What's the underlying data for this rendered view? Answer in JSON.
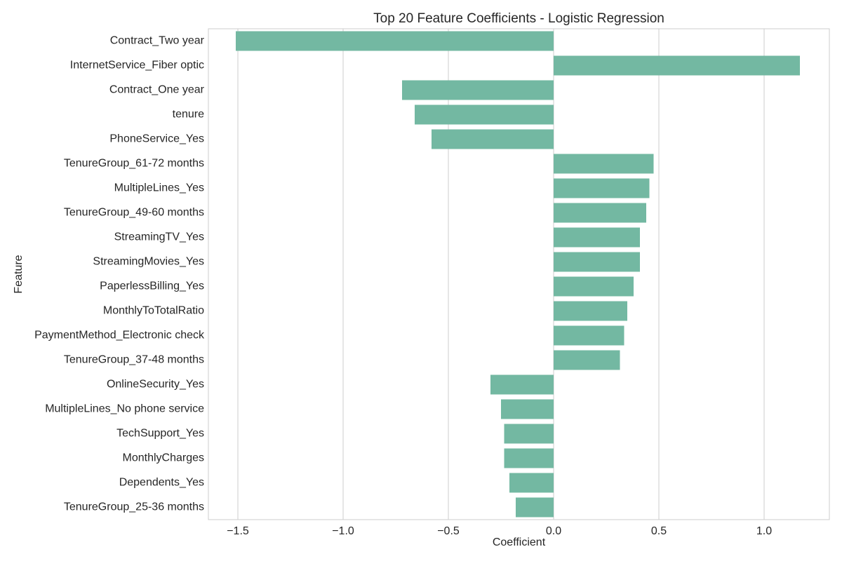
{
  "chart_data": {
    "type": "bar",
    "orientation": "horizontal",
    "title": "Top 20 Feature Coefficients - Logistic Regression",
    "xlabel": "Coefficient",
    "ylabel": "Feature",
    "categories": [
      "Contract_Two year",
      "InternetService_Fiber optic",
      "Contract_One year",
      "tenure",
      "PhoneService_Yes",
      "TenureGroup_61-72 months",
      "MultipleLines_Yes",
      "TenureGroup_49-60 months",
      "StreamingTV_Yes",
      "StreamingMovies_Yes",
      "PaperlessBilling_Yes",
      "MonthlyToTotalRatio",
      "PaymentMethod_Electronic check",
      "TenureGroup_37-48 months",
      "OnlineSecurity_Yes",
      "MultipleLines_No phone service",
      "TechSupport_Yes",
      "MonthlyCharges",
      "Dependents_Yes",
      "TenureGroup_25-36 months"
    ],
    "values": [
      -1.51,
      1.17,
      -0.72,
      -0.66,
      -0.58,
      0.475,
      0.455,
      0.44,
      0.41,
      0.41,
      0.38,
      0.35,
      0.335,
      0.315,
      -0.3,
      -0.25,
      -0.235,
      -0.235,
      -0.21,
      -0.18
    ],
    "xlim": [
      -1.64,
      1.31
    ],
    "xticks": [
      -1.5,
      -1.0,
      -0.5,
      0.0,
      0.5,
      1.0
    ],
    "xtick_labels": [
      "−1.5",
      "−1.0",
      "−0.5",
      "0.0",
      "0.5",
      "1.0"
    ],
    "grid": true,
    "bar_color": "#73b8a2"
  }
}
